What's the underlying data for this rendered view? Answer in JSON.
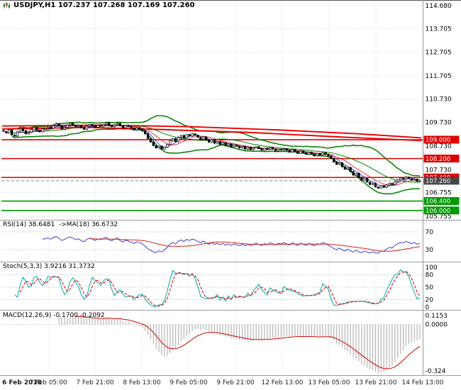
{
  "window": {
    "title_full": "USDJPY,H1 107.237 107.268 107.169 107.260"
  },
  "colors": {
    "background": "#ffffff",
    "grid": "#d4d4d4",
    "bull": "#ffffff",
    "bear": "#000000",
    "candle_border": "#000000",
    "bollinger": "#008000",
    "ma_red": "#ee0000",
    "ma_fast_red": "#d03030",
    "ma_fast_blue": "#3a3ad0",
    "level_red": "#dd0000",
    "level_green": "#009900",
    "badge_current": "#474747",
    "rsi": "#4040cc",
    "rsi_ma": "#cc2222",
    "stoch_k": "#00a5a5",
    "stoch_d": "#cc0000",
    "macd_hist": "#b4b4b4",
    "macd_signal": "#cc0000",
    "axis_text": "#000000",
    "time_text": "#222222",
    "divider": "#9a9a9a"
  },
  "chart_data": {
    "type": "candlestick",
    "symbol": "USDJPY",
    "timeframe": "H1",
    "title_full": "USDJPY,H1 107.237 107.268 107.169 107.260",
    "ohlc_display": {
      "open": "107.237",
      "high": "107.268",
      "low": "107.169",
      "close": "107.260"
    },
    "price_range": [
      "105.755",
      "114.680"
    ],
    "y_tick_labels": [
      "114.680",
      "113.705",
      "112.705",
      "111.705",
      "110.730",
      "109.730",
      "108.730",
      "107.730",
      "106.755",
      "105.755"
    ],
    "x_tick_labels": [
      "6 Feb 2018",
      "7 Feb 05:00",
      "7 Feb 21:00",
      "8 Feb 13:00",
      "9 Feb 05:00",
      "9 Feb 21:00",
      "12 Feb 13:00",
      "13 Feb 05:00",
      "13 Feb 21:00",
      "14 Feb 13:00"
    ],
    "levels": [
      {
        "price": "109.000",
        "color_key": "red",
        "kind": "resistance"
      },
      {
        "price": "108.200",
        "color_key": "red",
        "kind": "resistance"
      },
      {
        "price": "107.400",
        "color_key": "red",
        "kind": "resistance"
      },
      {
        "price": "106.400",
        "color_key": "green",
        "kind": "support"
      },
      {
        "price": "106.000",
        "color_key": "green",
        "kind": "support"
      }
    ],
    "current_price": "107.260",
    "closes": [
      109.35,
      109.28,
      109.42,
      109.2,
      109.15,
      109.33,
      109.47,
      109.38,
      109.25,
      109.31,
      109.44,
      109.52,
      109.4,
      109.33,
      109.46,
      109.5,
      109.55,
      109.48,
      109.6,
      109.67,
      109.58,
      109.45,
      109.52,
      109.63,
      109.7,
      109.62,
      109.55,
      109.6,
      109.5,
      109.44,
      109.57,
      109.65,
      109.6,
      109.53,
      109.62,
      109.58,
      109.65,
      109.72,
      109.6,
      109.55,
      109.63,
      109.7,
      109.58,
      109.5,
      109.6,
      109.55,
      109.48,
      109.42,
      109.5,
      109.45,
      109.38,
      109.25,
      109.05,
      108.9,
      108.75,
      108.65,
      108.72,
      108.6,
      108.68,
      108.8,
      108.95,
      109.05,
      108.92,
      109.1,
      109.18,
      109.08,
      109.22,
      109.15,
      109.25,
      109.2,
      109.1,
      109.02,
      109.12,
      108.98,
      108.9,
      109.0,
      108.85,
      108.92,
      108.8,
      108.88,
      108.75,
      108.82,
      108.7,
      108.78,
      108.72,
      108.65,
      108.72,
      108.6,
      108.68,
      108.58,
      108.65,
      108.7,
      108.62,
      108.55,
      108.64,
      108.58,
      108.66,
      108.6,
      108.52,
      108.6,
      108.56,
      108.62,
      108.55,
      108.48,
      108.58,
      108.5,
      108.42,
      108.52,
      108.45,
      108.38,
      108.47,
      108.4,
      108.32,
      108.42,
      108.35,
      108.45,
      108.38,
      108.3,
      108.2,
      108.05,
      107.95,
      108.02,
      107.85,
      107.75,
      107.82,
      107.65,
      107.5,
      107.58,
      107.4,
      107.28,
      107.35,
      107.2,
      107.1,
      107.15,
      107.0,
      106.95,
      107.05,
      106.98,
      107.08,
      107.15,
      107.1,
      107.22,
      107.3,
      107.38,
      107.32,
      107.42,
      107.35,
      107.28,
      107.33,
      107.24,
      107.26
    ],
    "overlays": {
      "bollinger": {
        "period": 20,
        "deviation": 2
      },
      "red_ma_lines": [
        {
          "points": [
            [
              0,
              109.58
            ],
            [
              0.25,
              109.62
            ],
            [
              0.45,
              109.55
            ],
            [
              0.65,
              109.42
            ],
            [
              0.85,
              109.25
            ],
            [
              1,
              109.08
            ]
          ]
        },
        {
          "points": [
            [
              0,
              109.45
            ],
            [
              0.2,
              109.52
            ],
            [
              0.4,
              109.42
            ],
            [
              0.6,
              109.3
            ],
            [
              0.8,
              109.12
            ],
            [
              1,
              108.96
            ]
          ]
        }
      ]
    },
    "indicator_panels": [
      {
        "name": "RSI",
        "label": "RSI(14) 38.6481  ->MA(18) 36.6732",
        "values_display": [
          "38.6481",
          "36.6732"
        ],
        "levels": [
          70,
          30
        ],
        "axis_labels": [
          "70",
          "30"
        ]
      },
      {
        "name": "Stochastic",
        "label": "Stoch(5,3,3) 3.9216 31.3732",
        "values_display": [
          "3.9216",
          "31.3732"
        ],
        "levels": [
          80,
          50,
          20
        ],
        "axis_labels": [
          "100",
          "80",
          "50",
          "20",
          "0"
        ]
      },
      {
        "name": "MACD",
        "label": "MACD(12,26,9) -0.1700 -0.2092",
        "values_display": [
          "-0.1700",
          "-0.2092"
        ],
        "axis_labels": [
          "0.1153",
          "0.0000",
          "-0.324"
        ],
        "range": [
          -0.324,
          0.1153
        ]
      }
    ]
  }
}
